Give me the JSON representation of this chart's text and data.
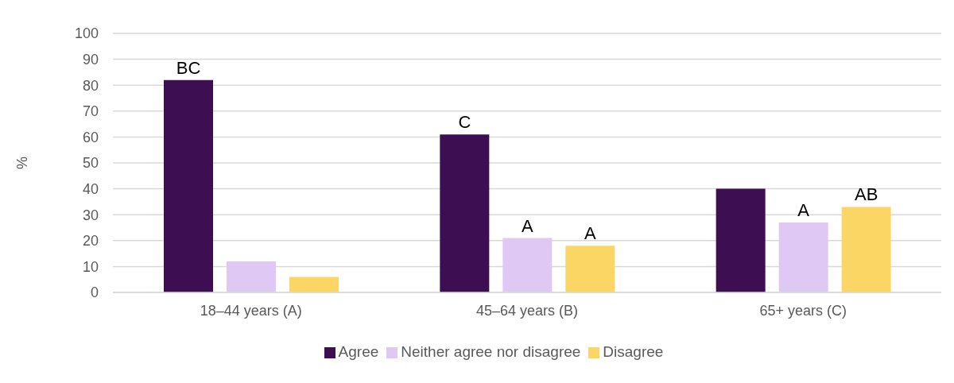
{
  "chart_data": {
    "type": "bar",
    "ylabel": "%",
    "categories": [
      "18–44 years (A)",
      "45–64 years (B)",
      "65+ years (C)"
    ],
    "series": [
      {
        "name": "Agree",
        "color": "#3d0f52",
        "values": [
          82,
          61,
          40
        ],
        "value_labels": [
          "BC",
          "C",
          null
        ]
      },
      {
        "name": "Neither agree nor disagree",
        "color": "#dfc9f4",
        "values": [
          12,
          21,
          27
        ],
        "value_labels": [
          null,
          "A",
          "A"
        ]
      },
      {
        "name": "Disagree",
        "color": "#fcd664",
        "values": [
          6,
          18,
          33
        ],
        "value_labels": [
          null,
          "A",
          "AB"
        ]
      }
    ],
    "ylim": [
      0,
      100
    ],
    "yticks": [
      0,
      10,
      20,
      30,
      40,
      50,
      60,
      70,
      80,
      90,
      100
    ],
    "grid": "y",
    "legend": "bottom"
  }
}
